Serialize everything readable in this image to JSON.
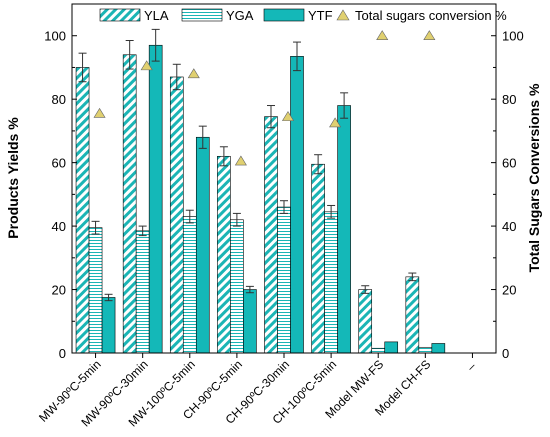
{
  "chart_data": {
    "type": "bar",
    "categories": [
      "MW-90ºC-5min",
      "MW-90ºC-30min",
      "MW-100ºC-5min",
      "CH-90ºC-5min",
      "CH-90ºC-30min",
      "CH-100ºC-5min",
      "Model MW-FS",
      "Model CH-FS"
    ],
    "extra_x_tick_label": "–",
    "ylabel": "Products Yields %",
    "y2label": "Total Sugars Conversions %",
    "ylim": [
      0,
      110
    ],
    "y2lim": [
      0,
      110
    ],
    "yticks": [
      0,
      20,
      40,
      60,
      80,
      100
    ],
    "legend_position": "top",
    "series": [
      {
        "name": "YLA",
        "pattern": "diagonal-hatch",
        "color": "#1bb5b5",
        "values": [
          90,
          94,
          87,
          62,
          74.5,
          59.5,
          20,
          24
        ],
        "errors": [
          4.5,
          4.5,
          4,
          3,
          3.5,
          3,
          1.2,
          1.2
        ]
      },
      {
        "name": "YGA",
        "pattern": "horizontal-hatch",
        "color": "#1bb5b5",
        "values": [
          39.5,
          38.5,
          43,
          42,
          46,
          44.5,
          1.5,
          1.8
        ],
        "errors": [
          2,
          1.5,
          2,
          2,
          2,
          2,
          0,
          0
        ]
      },
      {
        "name": "YTF",
        "pattern": "solid",
        "color": "#14b8b8",
        "values": [
          17.5,
          97,
          68,
          20,
          93.5,
          78,
          3.5,
          3
        ],
        "errors": [
          1,
          5,
          3.5,
          1,
          4.5,
          4,
          0,
          0
        ]
      },
      {
        "name": "Total sugars conversion %",
        "axis": "right",
        "marker": "triangle",
        "color": "#e0d070",
        "values": [
          75.5,
          90.5,
          88,
          60.5,
          74.5,
          72.5,
          100,
          100
        ]
      }
    ]
  }
}
